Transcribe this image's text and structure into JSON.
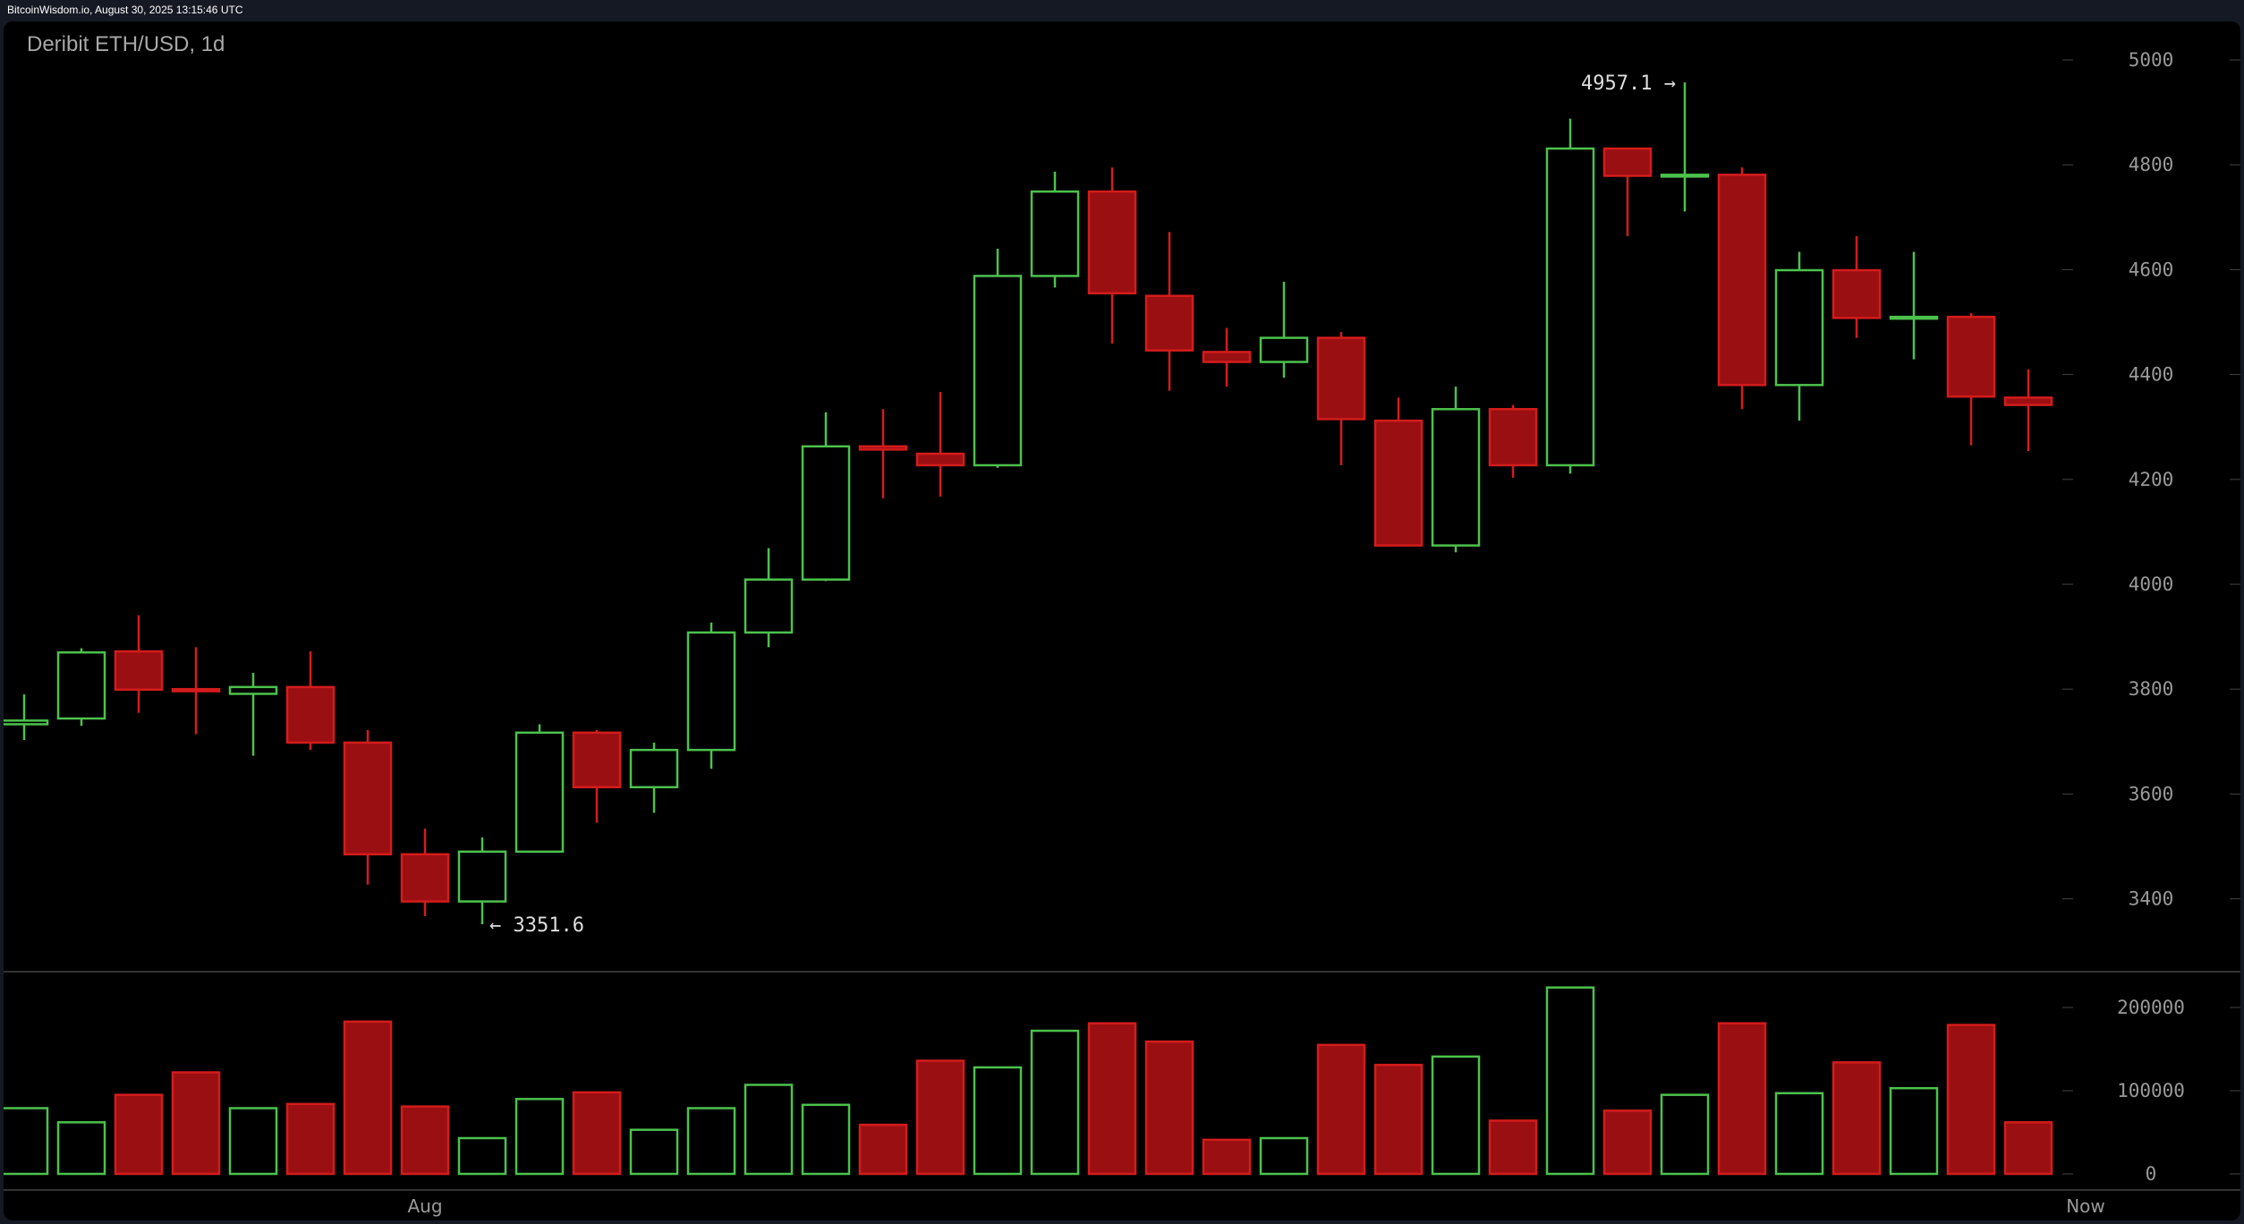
{
  "header": {
    "source_timestamp": "BitcoinWisdom.io, August 30, 2025 13:15:46 UTC"
  },
  "chart_title": "Deribit ETH/USD, 1d",
  "colors": {
    "up": "#4cc24c",
    "down_border": "#d41c1c",
    "down_fill": "#9a0f12",
    "background": "#000000",
    "frame": "#151924"
  },
  "chart_data": {
    "type": "candlestick",
    "title": "Deribit ETH/USD, 1d",
    "price_axis": {
      "ticks": [
        3400,
        3600,
        3800,
        4000,
        4200,
        4400,
        4600,
        4800,
        5000
      ],
      "range": [
        3240,
        5070
      ]
    },
    "volume_axis": {
      "ticks": [
        0,
        100000,
        200000
      ],
      "tick_labels": [
        "0",
        "100000",
        "200000"
      ]
    },
    "x_labels": [
      {
        "index": 7,
        "label": "Aug"
      },
      {
        "index": 36,
        "label": "Now"
      }
    ],
    "annotations": {
      "high": {
        "index": 29,
        "value": 4957.1,
        "label": "4957.1 →"
      },
      "low": {
        "index": 8,
        "value": 3351.6,
        "label": "← 3351.6"
      }
    },
    "grid": false,
    "candles": [
      {
        "o": 3733,
        "h": 3790,
        "l": 3703,
        "c": 3740,
        "v": 79000
      },
      {
        "o": 3744,
        "h": 3878,
        "l": 3730,
        "c": 3870,
        "v": 62000
      },
      {
        "o": 3872,
        "h": 3941,
        "l": 3755,
        "c": 3799,
        "v": 95000
      },
      {
        "o": 3800,
        "h": 3880,
        "l": 3714,
        "c": 3796,
        "v": 122000
      },
      {
        "o": 3791,
        "h": 3831,
        "l": 3673,
        "c": 3804,
        "v": 79000
      },
      {
        "o": 3804,
        "h": 3872,
        "l": 3684,
        "c": 3698,
        "v": 84000
      },
      {
        "o": 3698,
        "h": 3722,
        "l": 3427,
        "c": 3485,
        "v": 183000
      },
      {
        "o": 3485,
        "h": 3534,
        "l": 3367,
        "c": 3395,
        "v": 81000
      },
      {
        "o": 3395,
        "h": 3517,
        "l": 3351.6,
        "c": 3490,
        "v": 43000
      },
      {
        "o": 3490,
        "h": 3733,
        "l": 3490,
        "c": 3717,
        "v": 90000
      },
      {
        "o": 3717,
        "h": 3722,
        "l": 3545,
        "c": 3613,
        "v": 98000
      },
      {
        "o": 3613,
        "h": 3698,
        "l": 3564,
        "c": 3684,
        "v": 53000
      },
      {
        "o": 3684,
        "h": 3927,
        "l": 3648,
        "c": 3908,
        "v": 79000
      },
      {
        "o": 3908,
        "h": 4069,
        "l": 3880,
        "c": 4009,
        "v": 107000
      },
      {
        "o": 4009,
        "h": 4328,
        "l": 4006,
        "c": 4263,
        "v": 83000
      },
      {
        "o": 4263,
        "h": 4334,
        "l": 4164,
        "c": 4257,
        "v": 59000
      },
      {
        "o": 4249,
        "h": 4367,
        "l": 4167,
        "c": 4227,
        "v": 136000
      },
      {
        "o": 4227,
        "h": 4640,
        "l": 4222,
        "c": 4588,
        "v": 128000
      },
      {
        "o": 4588,
        "h": 4787,
        "l": 4566,
        "c": 4749,
        "v": 172000
      },
      {
        "o": 4749,
        "h": 4795,
        "l": 4459,
        "c": 4555,
        "v": 181000
      },
      {
        "o": 4550,
        "h": 4672,
        "l": 4369,
        "c": 4446,
        "v": 159000
      },
      {
        "o": 4443,
        "h": 4489,
        "l": 4377,
        "c": 4424,
        "v": 41000
      },
      {
        "o": 4424,
        "h": 4577,
        "l": 4394,
        "c": 4470,
        "v": 43000
      },
      {
        "o": 4470,
        "h": 4481,
        "l": 4227,
        "c": 4315,
        "v": 155000
      },
      {
        "o": 4312,
        "h": 4356,
        "l": 4072,
        "c": 4074,
        "v": 131000
      },
      {
        "o": 4074,
        "h": 4377,
        "l": 4061,
        "c": 4334,
        "v": 141000
      },
      {
        "o": 4334,
        "h": 4342,
        "l": 4203,
        "c": 4227,
        "v": 64000
      },
      {
        "o": 4227,
        "h": 4888,
        "l": 4211,
        "c": 4831,
        "v": 224000
      },
      {
        "o": 4831,
        "h": 4831,
        "l": 4664,
        "c": 4779,
        "v": 76000
      },
      {
        "o": 4779,
        "h": 4957.1,
        "l": 4711,
        "c": 4781,
        "v": 95000
      },
      {
        "o": 4781,
        "h": 4795,
        "l": 4334,
        "c": 4380,
        "v": 181000
      },
      {
        "o": 4380,
        "h": 4634,
        "l": 4312,
        "c": 4599,
        "v": 97000
      },
      {
        "o": 4599,
        "h": 4664,
        "l": 4470,
        "c": 4508,
        "v": 134000
      },
      {
        "o": 4508,
        "h": 4634,
        "l": 4429,
        "c": 4510,
        "v": 103000
      },
      {
        "o": 4510,
        "h": 4517,
        "l": 4265,
        "c": 4358,
        "v": 179000
      },
      {
        "o": 4356,
        "h": 4410,
        "l": 4254,
        "c": 4342,
        "v": 62000
      }
    ]
  }
}
